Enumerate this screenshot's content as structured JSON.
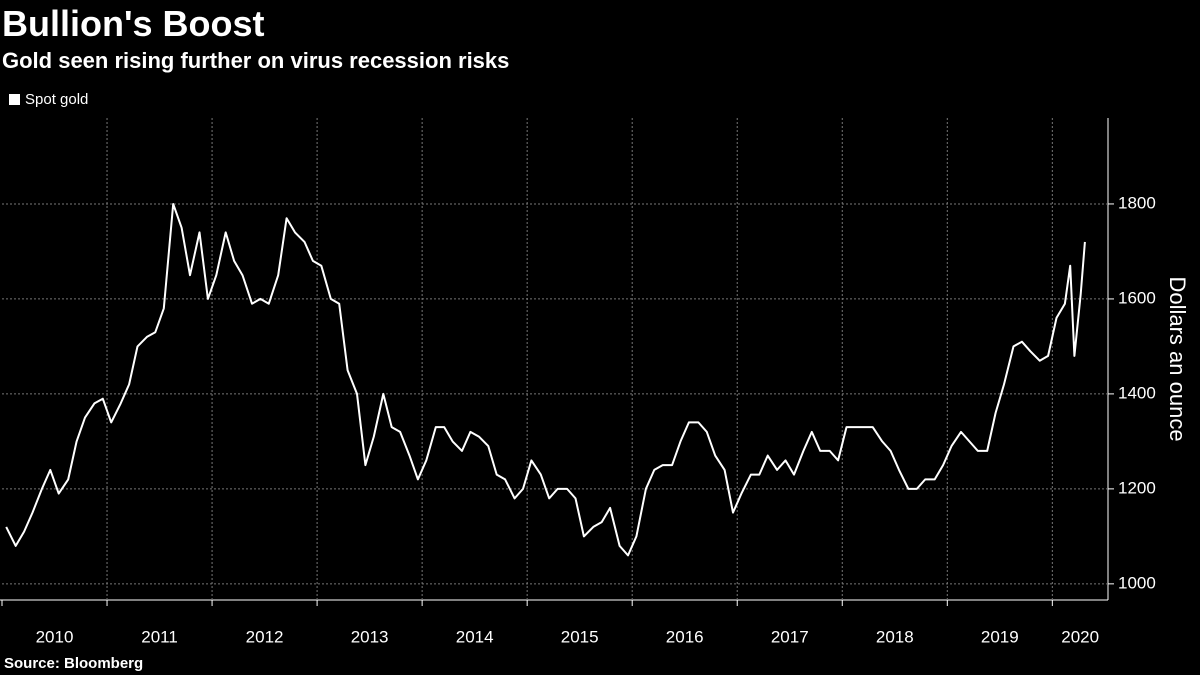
{
  "chart_data": {
    "type": "line",
    "title": "Bullion's Boost",
    "subtitle": "Gold seen rising further on virus recession risks",
    "y_label": "Dollars an ounce",
    "source": "Source: Bloomberg",
    "xlim": [
      2010.0,
      2020.53
    ],
    "xticks": [
      2010,
      2011,
      2012,
      2013,
      2014,
      2015,
      2016,
      2017,
      2018,
      2019,
      2020
    ],
    "ylim": [
      966,
      1981
    ],
    "yticks": [
      1000,
      1200,
      1400,
      1600,
      1800
    ],
    "grid": true,
    "legend": "top-left",
    "series": [
      {
        "name": "Spot gold",
        "color": "#ffffff",
        "x": [
          2010.04,
          2010.13,
          2010.21,
          2010.29,
          2010.38,
          2010.46,
          2010.54,
          2010.63,
          2010.71,
          2010.79,
          2010.88,
          2010.96,
          2011.04,
          2011.13,
          2011.21,
          2011.29,
          2011.38,
          2011.46,
          2011.54,
          2011.63,
          2011.71,
          2011.79,
          2011.88,
          2011.96,
          2012.04,
          2012.13,
          2012.21,
          2012.29,
          2012.38,
          2012.46,
          2012.54,
          2012.63,
          2012.71,
          2012.79,
          2012.88,
          2012.96,
          2013.04,
          2013.13,
          2013.21,
          2013.29,
          2013.38,
          2013.46,
          2013.54,
          2013.63,
          2013.71,
          2013.79,
          2013.88,
          2013.96,
          2014.04,
          2014.13,
          2014.21,
          2014.29,
          2014.38,
          2014.46,
          2014.54,
          2014.63,
          2014.71,
          2014.79,
          2014.88,
          2014.96,
          2015.04,
          2015.13,
          2015.21,
          2015.29,
          2015.38,
          2015.46,
          2015.54,
          2015.63,
          2015.71,
          2015.79,
          2015.88,
          2015.96,
          2016.04,
          2016.13,
          2016.21,
          2016.29,
          2016.38,
          2016.46,
          2016.54,
          2016.63,
          2016.71,
          2016.79,
          2016.88,
          2016.96,
          2017.04,
          2017.13,
          2017.21,
          2017.29,
          2017.38,
          2017.46,
          2017.54,
          2017.63,
          2017.71,
          2017.79,
          2017.88,
          2017.96,
          2018.04,
          2018.13,
          2018.21,
          2018.29,
          2018.38,
          2018.46,
          2018.54,
          2018.63,
          2018.71,
          2018.79,
          2018.88,
          2018.96,
          2019.04,
          2019.13,
          2019.21,
          2019.29,
          2019.38,
          2019.46,
          2019.54,
          2019.63,
          2019.71,
          2019.79,
          2019.88,
          2019.96,
          2020.04,
          2020.12,
          2020.17,
          2020.21,
          2020.27,
          2020.31
        ],
        "values": [
          1120,
          1080,
          1110,
          1150,
          1200,
          1240,
          1190,
          1220,
          1300,
          1350,
          1380,
          1390,
          1340,
          1380,
          1420,
          1500,
          1520,
          1530,
          1580,
          1800,
          1750,
          1650,
          1740,
          1600,
          1650,
          1740,
          1680,
          1650,
          1590,
          1600,
          1590,
          1650,
          1770,
          1740,
          1720,
          1680,
          1670,
          1600,
          1590,
          1450,
          1400,
          1250,
          1310,
          1400,
          1330,
          1320,
          1270,
          1220,
          1260,
          1330,
          1330,
          1300,
          1280,
          1320,
          1310,
          1290,
          1230,
          1220,
          1180,
          1200,
          1260,
          1230,
          1180,
          1200,
          1200,
          1180,
          1100,
          1120,
          1130,
          1160,
          1080,
          1060,
          1100,
          1200,
          1240,
          1250,
          1250,
          1300,
          1340,
          1340,
          1320,
          1270,
          1240,
          1150,
          1190,
          1230,
          1230,
          1270,
          1240,
          1260,
          1230,
          1280,
          1320,
          1280,
          1280,
          1260,
          1330,
          1330,
          1330,
          1330,
          1300,
          1280,
          1240,
          1200,
          1200,
          1220,
          1220,
          1250,
          1290,
          1320,
          1300,
          1280,
          1280,
          1360,
          1420,
          1500,
          1510,
          1490,
          1470,
          1480,
          1560,
          1590,
          1670,
          1480,
          1610,
          1720
        ]
      }
    ]
  }
}
